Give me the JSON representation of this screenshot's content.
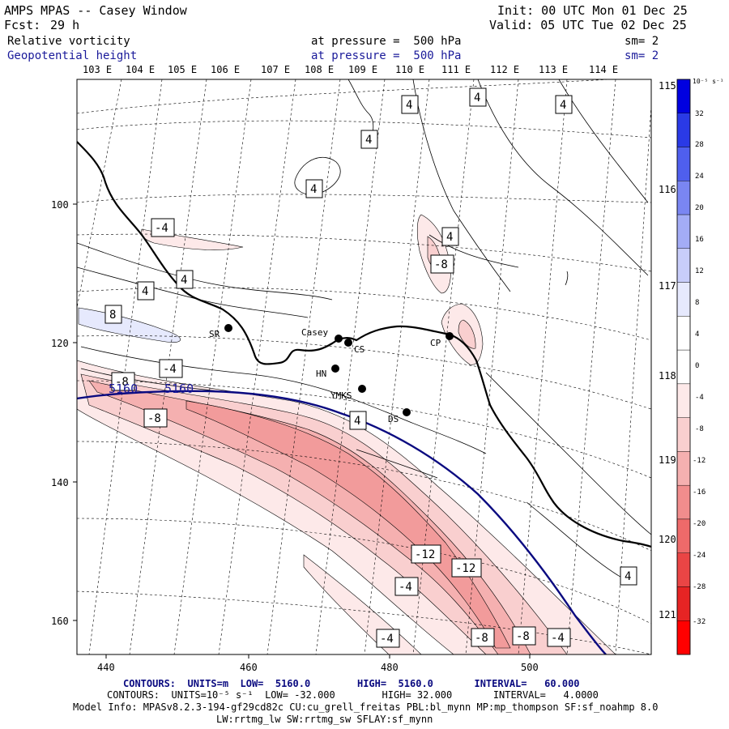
{
  "header": {
    "title": "AMPS MPAS -- Casey Window",
    "fcst_label": "Fcst:",
    "fcst_value": "29 h",
    "init": "Init: 00 UTC Mon 01 Dec 25",
    "valid": "Valid: 05 UTC Tue 02 Dec 25"
  },
  "fields": [
    {
      "name": "Relative vorticity",
      "pressure_text": "at pressure =  500 hPa",
      "sm": "sm= 2"
    },
    {
      "name": "Geopotential height",
      "pressure_text": "at pressure =  500 hPa",
      "sm": "sm= 2"
    }
  ],
  "top_lon_labels": [
    "103 E",
    "104 E",
    "105 E",
    "106 E",
    "107 E",
    "108 E",
    "109 E",
    "110 E",
    "111 E",
    "112 E",
    "113 E",
    "114 E"
  ],
  "right_lon_labels": [
    "115 E",
    "116 E",
    "117 E",
    "118 E",
    "119 E",
    "120 E",
    "121 E"
  ],
  "x_axis_ticks": [
    "440",
    "460",
    "480",
    "500"
  ],
  "y_axis_ticks": [
    "100",
    "120",
    "140",
    "160"
  ],
  "colorbar": {
    "unit": "10⁻⁵ s⁻¹",
    "levels": [
      32,
      28,
      24,
      20,
      16,
      12,
      8,
      4,
      0,
      -4,
      -8,
      -12,
      -16,
      -20,
      -24,
      -28,
      -32
    ],
    "colors": [
      "#0000e0",
      "#2a3ae6",
      "#4f5fee",
      "#7a86f2",
      "#a3acf6",
      "#c8cdfa",
      "#e6e9fd",
      "#ffffff",
      "#ffffff",
      "#fde9e9",
      "#f9cfcf",
      "#f5b0b0",
      "#f18d8d",
      "#ee6a6a",
      "#ea4545",
      "#e62424",
      "#ff0000"
    ]
  },
  "stations": [
    {
      "id": "SR"
    },
    {
      "id": "Casey"
    },
    {
      "id": "CS"
    },
    {
      "id": "HN"
    },
    {
      "id": "YMKS"
    },
    {
      "id": "DS"
    },
    {
      "id": "CP"
    }
  ],
  "contour_labels": {
    "vort_a": "4",
    "vort_b": "4",
    "vort_c": "4",
    "vort_d": "4",
    "vort_e": "4",
    "vort_f": "-4",
    "vort_g": "4",
    "vort_h": "4",
    "vort_i": "-8",
    "vort_j": "4",
    "vort_k": "8",
    "vort_l": "-4",
    "vort_m": "-8",
    "vort_n": "-8",
    "vort_o": "4",
    "vort_p": "-12",
    "vort_q": "-12",
    "vort_r": "-4",
    "vort_s": "-4",
    "vort_t": "-8",
    "vort_u": "-8",
    "vort_v": "-4",
    "vort_w": "4",
    "height_1": "5160",
    "height_2": "5160"
  },
  "footer": {
    "contours1": "CONTOURS:  UNITS=m  LOW=  5160.0        HIGH=  5160.0       INTERVAL=   60.000",
    "contours2": "CONTOURS:  UNITS=10⁻⁵ s⁻¹  LOW= -32.000        HIGH= 32.000       INTERVAL=   4.0000",
    "model_info": "Model Info: MPASv8.2.3-194-gf29cd82c CU:cu_grell_freitas PBL:bl_mynn MP:mp_thompson SF:sf_noahmp 8.0",
    "model_info2": "LW:rrtmg_lw SW:rrtmg_sw SFLAY:sf_mynn"
  }
}
